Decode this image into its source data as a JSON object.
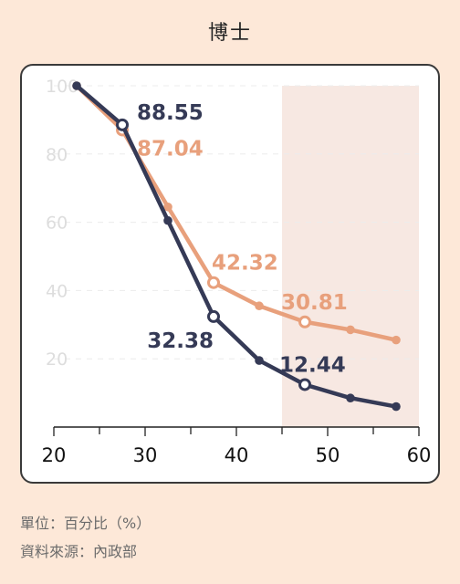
{
  "title": "博士",
  "footnotes": {
    "unit": "單位：百分比（%）",
    "source": "資料來源：內政部"
  },
  "colors": {
    "background": "#fde8d8",
    "highlight": "#f7e8e2",
    "series_dark": "#353a56",
    "series_orange": "#e8a07c",
    "ytick": "#dddddd"
  },
  "chart_data": {
    "type": "line",
    "x": [
      22.5,
      27.5,
      32.5,
      37.5,
      42.5,
      47.5,
      52.5,
      57.5
    ],
    "xticks": [
      20,
      30,
      40,
      50,
      60
    ],
    "xlim": [
      20,
      60
    ],
    "yticks": [
      20,
      40,
      60,
      80,
      100
    ],
    "ylim": [
      0,
      100
    ],
    "highlight_range": [
      45,
      60
    ],
    "grid": true,
    "series": [
      {
        "values": [
          100,
          87.04,
          64.5,
          42.32,
          35.5,
          30.81,
          28.5,
          25.5
        ],
        "labeled": [
          null,
          "87.04",
          null,
          "42.32",
          null,
          "30.81",
          null,
          null
        ],
        "color": "#e8a07c"
      },
      {
        "values": [
          100,
          88.55,
          60.5,
          32.38,
          19.5,
          12.44,
          8.5,
          6.0
        ],
        "labeled": [
          null,
          "88.55",
          null,
          "32.38",
          null,
          "12.44",
          null,
          null
        ],
        "color": "#353a56"
      }
    ]
  }
}
